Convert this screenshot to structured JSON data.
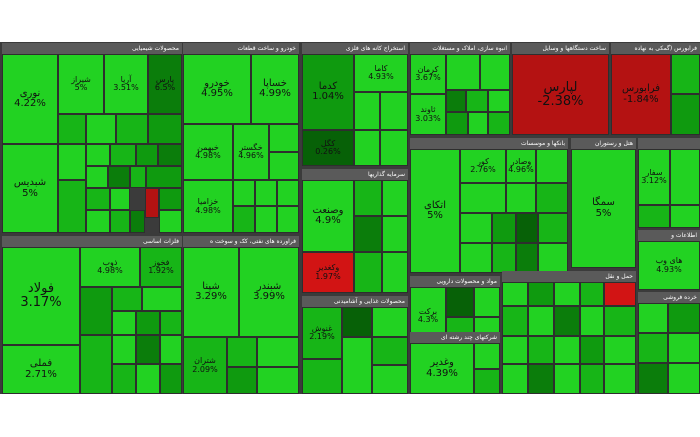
{
  "sectors": {
    "chemical": "محصولات شیمیایی",
    "auto": "خودرو و ساخت قطعات",
    "mining": "استخراج کانه های فلزی",
    "realestate": "انبوه سازی، املاک و مستغلات",
    "appliances": "ساخت دستگاهها و وسایل",
    "multidisc": "فرابورس (گمکی به نهاده",
    "metals": "فلزات اساسی",
    "oil": "فراورده های نفتی، کک و سوخت ه",
    "food": "محصولات غذایی و آشامیدنی",
    "investment": "سرمایه گذاریها",
    "banks": "بانکها و موسسات",
    "hotels": "هتل و رستوران",
    "pharma": "مواد و محصولات دارویی",
    "multi": "شرکتهای چند رشته ای",
    "it": "اطلاعات و",
    "retail": "خرده فروشی",
    "transport": "حمل و نقل"
  },
  "tiles": {
    "nori": {
      "name": "نوری",
      "pct": "4.22%"
    },
    "shiraz": {
      "name": "شیراز",
      "pct": "5%"
    },
    "arya": {
      "name": "آریا",
      "pct": "3.51%"
    },
    "parsan": {
      "name": "پارس",
      "pct": "6.5%"
    },
    "shabdis": {
      "name": "شبدیس",
      "pct": "5%"
    },
    "khodro": {
      "name": "خودرو",
      "pct": "4.95%"
    },
    "khasapa": {
      "name": "خساپا",
      "pct": "4.99%"
    },
    "khabahman": {
      "name": "خبهمن",
      "pct": "4.98%"
    },
    "khegostar": {
      "name": "خگستر",
      "pct": "4.96%"
    },
    "khazamia": {
      "name": "خزامیا",
      "pct": "4.98%"
    },
    "kadama": {
      "name": "کدما",
      "pct": "1.04%"
    },
    "kama": {
      "name": "کاما",
      "pct": "4.93%"
    },
    "kagol": {
      "name": "کگل",
      "pct": "0.26%"
    },
    "vasanat": {
      "name": "وصنعت",
      "pct": "4.9%"
    },
    "vakhark": {
      "name": "وکغدیر",
      "pct": "1.97%"
    },
    "arman": {
      "name": "کرمان",
      "pct": "3.67%"
    },
    "savand": {
      "name": "ثاوند",
      "pct": "3.03%"
    },
    "lavaras": {
      "name": "لپارس",
      "pct": "-2.38%"
    },
    "farabors": {
      "name": "فرابورس",
      "pct": "-1.84%"
    },
    "enkay": {
      "name": "اتکای",
      "pct": "5%"
    },
    "kor": {
      "name": "کور",
      "pct": "2.76%"
    },
    "vasaderat": {
      "name": "وصادر",
      "pct": "4.96%"
    },
    "samga": {
      "name": "سمگا",
      "pct": "5%"
    },
    "safar": {
      "name": "سفار",
      "pct": "3.12%"
    },
    "fulad": {
      "name": "فولاد",
      "pct": "3.17%"
    },
    "dob": {
      "name": "ذوب",
      "pct": "4.98%"
    },
    "foghan": {
      "name": "فخوز",
      "pct": "1.92%"
    },
    "fameli": {
      "name": "فملی",
      "pct": "2.71%"
    },
    "shabandar": {
      "name": "شبندر",
      "pct": "3.99%"
    },
    "shepna": {
      "name": "شپنا",
      "pct": "3.29%"
    },
    "shetran": {
      "name": "شتران",
      "pct": "2.09%"
    },
    "ghenosh": {
      "name": "غنوش",
      "pct": "2.19%"
    },
    "barekt": {
      "name": "برکت",
      "pct": "4.3%"
    },
    "vaghadir": {
      "name": "وغدیر",
      "pct": "4.39%"
    },
    "hayrap": {
      "name": "های وب",
      "pct": "4.93%"
    }
  }
}
